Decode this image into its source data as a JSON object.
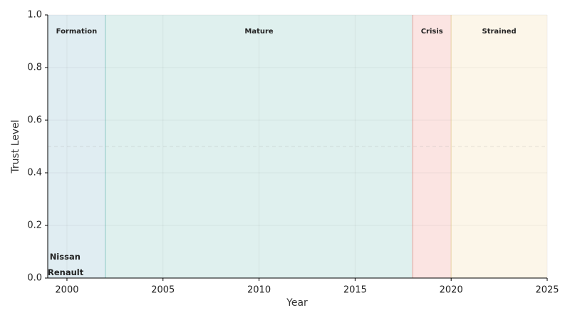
{
  "chart_data": {
    "type": "phases",
    "xlabel": "Year",
    "ylabel": "Trust Level",
    "xlim": [
      1999,
      2025
    ],
    "xticks": [
      2000,
      2005,
      2010,
      2015,
      2020,
      2025
    ],
    "ylim": [
      0,
      1
    ],
    "yticks": [
      {
        "value": 0,
        "label": "0.0"
      },
      {
        "value": 0.2,
        "label": "0.2"
      },
      {
        "value": 0.4,
        "label": "0.4"
      },
      {
        "value": 0.6,
        "label": "0.6"
      },
      {
        "value": 0.8,
        "label": "0.8"
      },
      {
        "value": 1,
        "label": "1.0"
      }
    ],
    "grid": true,
    "reference_line": 0.5,
    "phases": [
      {
        "name": "Formation",
        "start": 1999,
        "end": 2002,
        "color": "#2e86ab"
      },
      {
        "name": "Mature",
        "start": 2002,
        "end": 2018,
        "color": "#2a9d8f"
      },
      {
        "name": "Crisis",
        "start": 2018,
        "end": 2020,
        "color": "#e74c3c"
      },
      {
        "name": "Strained",
        "start": 2020,
        "end": 2025,
        "color": "#e9c46a"
      }
    ],
    "annotations": [
      {
        "text": "Nissan",
        "x": 1999.1,
        "y": 0.08,
        "color": "#2e86ab"
      },
      {
        "text": "Renault",
        "x": 1999,
        "y": 0.02,
        "color": "#e74c3c"
      }
    ]
  }
}
